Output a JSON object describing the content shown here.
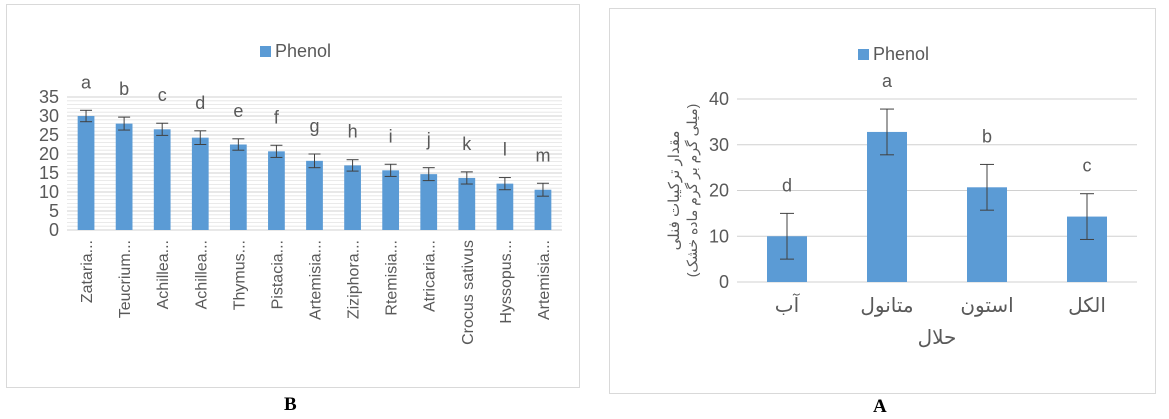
{
  "chart_data": [
    {
      "panel": "B",
      "type": "bar",
      "legend": "Phenol",
      "legend_position": "top",
      "categories": [
        "Zataria...",
        "Teucrium...",
        "Achillea...",
        "Achillea...",
        "Thymus...",
        "Pistacia...",
        "Artemisia...",
        "Ziziphora...",
        "Rtemisia...",
        "Atricaria...",
        "Crocus sativus",
        "Hyssopus...",
        "Artemisia..."
      ],
      "series": [
        {
          "name": "Phenol",
          "values": [
            30,
            28,
            26.5,
            24.3,
            22.5,
            20.7,
            18.2,
            17.0,
            15.7,
            14.7,
            13.7,
            12.2,
            10.6
          ],
          "errors": [
            1.5,
            1.7,
            1.6,
            1.8,
            1.5,
            1.6,
            1.8,
            1.5,
            1.6,
            1.7,
            1.6,
            1.6,
            1.7
          ],
          "letters": [
            "a",
            "b",
            "c",
            "d",
            "e",
            "f",
            "g",
            "h",
            "i",
            "j",
            "k",
            "l",
            "m"
          ]
        }
      ],
      "yticks": [
        0,
        5,
        10,
        15,
        20,
        25,
        30,
        35
      ],
      "ylim": [
        0,
        35
      ],
      "grid": true,
      "color": "#5b9bd5"
    },
    {
      "panel": "A",
      "type": "bar",
      "legend": "Phenol",
      "legend_position": "top",
      "categories": [
        "آب",
        "متانول",
        "استون",
        "الکل"
      ],
      "series": [
        {
          "name": "Phenol",
          "values": [
            10,
            32.8,
            20.7,
            14.3
          ],
          "errors": [
            5,
            5,
            5,
            5
          ],
          "letters": [
            "d",
            "a",
            "b",
            "c"
          ]
        }
      ],
      "ylabel": "مقدار ترکیبات فنلی",
      "ylabel_line2": "(میلی گرم بر گرم ماده خشک)",
      "xlabel": "حلال",
      "yticks": [
        0,
        10,
        20,
        30,
        40
      ],
      "ylim": [
        0,
        40
      ],
      "grid": true,
      "color": "#5b9bd5"
    }
  ],
  "panel_labels": {
    "b": "B",
    "a": "A"
  }
}
